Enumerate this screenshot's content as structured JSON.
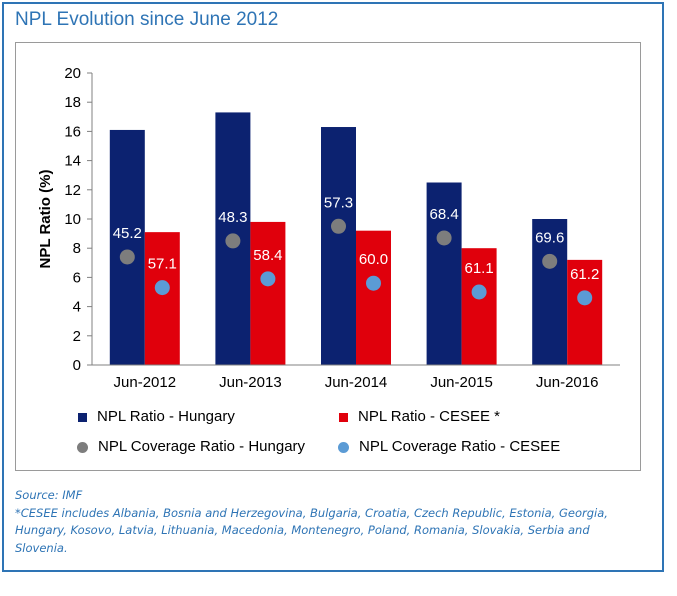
{
  "title": "NPL Evolution since June 2012",
  "colors": {
    "border": "#2e74b5",
    "hungary_bar": "#0c2270",
    "cesee_bar": "#e0000c",
    "hungary_dot": "#7d7d7d",
    "cesee_dot": "#5b9bd5",
    "label_gray": "#ffffff",
    "label_blue": "#ffffff"
  },
  "legend": [
    {
      "label": "NPL Ratio - Hungary",
      "shape": "square",
      "color": "#0c2270"
    },
    {
      "label": "NPL Ratio - CESEE *",
      "shape": "square",
      "color": "#e0000c"
    },
    {
      "label": "NPL Coverage Ratio - Hungary",
      "shape": "circle",
      "color": "#7d7d7d"
    },
    {
      "label": "NPL Coverage Ratio - CESEE",
      "shape": "circle",
      "color": "#5b9bd5"
    }
  ],
  "chart_data": {
    "type": "bar",
    "ylabel": "NPL Ratio (%)",
    "xlabel": "",
    "ylim": [
      0,
      20
    ],
    "yticks": [
      0,
      2,
      4,
      6,
      8,
      10,
      12,
      14,
      16,
      18,
      20
    ],
    "grid": false,
    "categories": [
      "Jun-2012",
      "Jun-2013",
      "Jun-2014",
      "Jun-2015",
      "Jun-2016"
    ],
    "series": [
      {
        "name": "NPL Ratio - Hungary",
        "kind": "bar",
        "values": [
          16.1,
          17.3,
          16.3,
          12.5,
          10.0
        ]
      },
      {
        "name": "NPL Ratio - CESEE *",
        "kind": "bar",
        "values": [
          9.1,
          9.8,
          9.2,
          8.0,
          7.2
        ]
      }
    ],
    "markers": [
      {
        "name": "NPL Coverage Ratio - Hungary",
        "kind": "dot",
        "positions": [
          7.4,
          8.5,
          9.5,
          8.7,
          7.1
        ],
        "labels": [
          "45.2",
          "48.3",
          "57.3",
          "68.4",
          "69.6"
        ]
      },
      {
        "name": "NPL Coverage Ratio - CESEE",
        "kind": "dot",
        "positions": [
          5.3,
          5.9,
          5.6,
          5.0,
          4.6
        ],
        "labels": [
          "57.1",
          "58.4",
          "60.0",
          "61.1",
          "61.2"
        ]
      }
    ]
  },
  "notes": {
    "source": "Source: IMF",
    "footnote": "*CESEE includes Albania, Bosnia and Herzegovina, Bulgaria, Croatia, Czech Republic, Estonia, Georgia, Hungary, Kosovo, Latvia, Lithuania, Macedonia, Montenegro, Poland, Romania, Slovakia, Serbia and Slovenia."
  }
}
